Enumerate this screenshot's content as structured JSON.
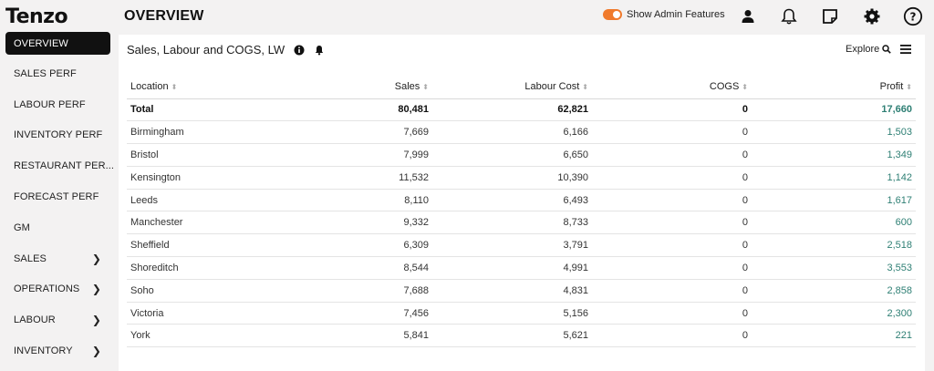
{
  "brand": {
    "logo_text": "Tenzo"
  },
  "sidebar": {
    "items": [
      {
        "label": "OVERVIEW",
        "active": true,
        "has_submenu": false
      },
      {
        "label": "SALES PERF",
        "active": false,
        "has_submenu": false
      },
      {
        "label": "LABOUR PERF",
        "active": false,
        "has_submenu": false
      },
      {
        "label": "INVENTORY PERF",
        "active": false,
        "has_submenu": false
      },
      {
        "label": "RESTAURANT PER...",
        "active": false,
        "has_submenu": false
      },
      {
        "label": "FORECAST PERF",
        "active": false,
        "has_submenu": false
      },
      {
        "label": "GM",
        "active": false,
        "has_submenu": false
      },
      {
        "label": "SALES",
        "active": false,
        "has_submenu": true
      },
      {
        "label": "OPERATIONS",
        "active": false,
        "has_submenu": true
      },
      {
        "label": "LABOUR",
        "active": false,
        "has_submenu": true
      },
      {
        "label": "INVENTORY",
        "active": false,
        "has_submenu": true
      }
    ]
  },
  "header": {
    "title": "OVERVIEW",
    "admin_toggle_label": "Show Admin Features",
    "admin_toggle_on": true,
    "icons": [
      "user-icon",
      "bell-icon",
      "note-icon",
      "gear-icon",
      "help-icon"
    ]
  },
  "card": {
    "title": "Sales, Labour and COGS, LW",
    "explore_label": "Explore",
    "columns": [
      "Location",
      "Sales",
      "Labour Cost",
      "COGS",
      "Profit"
    ],
    "total": {
      "location": "Total",
      "sales": "80,481",
      "labour": "62,821",
      "cogs": "0",
      "profit": "17,660"
    },
    "rows": [
      {
        "location": "Birmingham",
        "sales": "7,669",
        "labour": "6,166",
        "cogs": "0",
        "profit": "1,503"
      },
      {
        "location": "Bristol",
        "sales": "7,999",
        "labour": "6,650",
        "cogs": "0",
        "profit": "1,349"
      },
      {
        "location": "Kensington",
        "sales": "11,532",
        "labour": "10,390",
        "cogs": "0",
        "profit": "1,142"
      },
      {
        "location": "Leeds",
        "sales": "8,110",
        "labour": "6,493",
        "cogs": "0",
        "profit": "1,617"
      },
      {
        "location": "Manchester",
        "sales": "9,332",
        "labour": "8,733",
        "cogs": "0",
        "profit": "600"
      },
      {
        "location": "Sheffield",
        "sales": "6,309",
        "labour": "3,791",
        "cogs": "0",
        "profit": "2,518"
      },
      {
        "location": "Shoreditch",
        "sales": "8,544",
        "labour": "4,991",
        "cogs": "0",
        "profit": "3,553"
      },
      {
        "location": "Soho",
        "sales": "7,688",
        "labour": "4,831",
        "cogs": "0",
        "profit": "2,858"
      },
      {
        "location": "Victoria",
        "sales": "7,456",
        "labour": "5,156",
        "cogs": "0",
        "profit": "2,300"
      },
      {
        "location": "York",
        "sales": "5,841",
        "labour": "5,621",
        "cogs": "0",
        "profit": "221"
      }
    ]
  },
  "colors": {
    "accent": "#f07a2c",
    "profit": "#2e7f74",
    "active_nav": "#111111"
  }
}
